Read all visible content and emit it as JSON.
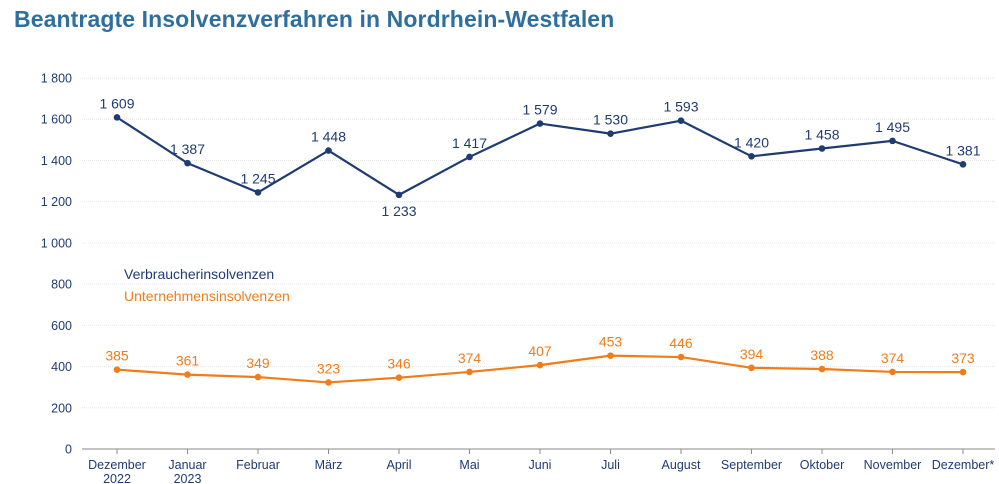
{
  "chart_data": {
    "type": "line",
    "title": "Beantragte Insolvenzverfahren in Nordrhein-Westfalen",
    "categories": [
      [
        "Dezember",
        "2022"
      ],
      [
        "Januar",
        "2023"
      ],
      [
        "Februar"
      ],
      [
        "März"
      ],
      [
        "April"
      ],
      [
        "Mai"
      ],
      [
        "Juni"
      ],
      [
        "Juli"
      ],
      [
        "August"
      ],
      [
        "September"
      ],
      [
        "Oktober"
      ],
      [
        "November"
      ],
      [
        "Dezember*"
      ]
    ],
    "ylim": [
      0,
      1800
    ],
    "yticks": [
      "0",
      "200",
      "400",
      "600",
      "800",
      "1 000",
      "1 200",
      "1 400",
      "1 600",
      "1 800"
    ],
    "grid": true,
    "legend_position": "center-left",
    "series": [
      {
        "name": "Verbraucherinsolvenzen",
        "color": "#1f3b73",
        "values": [
          1609,
          1387,
          1245,
          1448,
          1233,
          1417,
          1579,
          1530,
          1593,
          1420,
          1458,
          1495,
          1381
        ],
        "labels": [
          "1 609",
          "1 387",
          "1 245",
          "1 448",
          "1 233",
          "1 417",
          "1 579",
          "1 530",
          "1 593",
          "1 420",
          "1 458",
          "1 495",
          "1 381"
        ]
      },
      {
        "name": "Unternehmensinsolvenzen",
        "color": "#f07d1a",
        "values": [
          385,
          361,
          349,
          323,
          346,
          374,
          407,
          453,
          446,
          394,
          388,
          374,
          373
        ],
        "labels": [
          "385",
          "361",
          "349",
          "323",
          "346",
          "374",
          "407",
          "453",
          "446",
          "394",
          "388",
          "374",
          "373"
        ]
      }
    ]
  }
}
